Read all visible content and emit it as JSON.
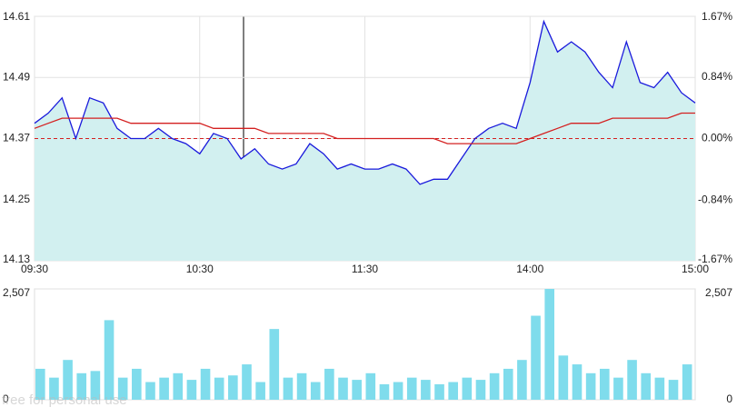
{
  "chart_data": [
    {
      "type": "line",
      "x": [
        0,
        5,
        10,
        15,
        20,
        25,
        30,
        35,
        40,
        45,
        50,
        55,
        60,
        65,
        70,
        75,
        80,
        85,
        90,
        95,
        100,
        105,
        110,
        115,
        120,
        125,
        130,
        135,
        140,
        145,
        150,
        155,
        160,
        165,
        170,
        175,
        180,
        185,
        190,
        195,
        200,
        205,
        210,
        215,
        220,
        225,
        230,
        235,
        240
      ],
      "xlim": [
        0,
        240
      ],
      "xticks": [
        {
          "value": 0,
          "label": "09:30"
        },
        {
          "value": 60,
          "label": "10:30"
        },
        {
          "value": 120,
          "label": "11:30"
        },
        {
          "value": 180,
          "label": "14:00"
        },
        {
          "value": 240,
          "label": "15:00"
        }
      ],
      "ylim": [
        14.13,
        14.61
      ],
      "yticks": [
        14.13,
        14.25,
        14.37,
        14.49,
        14.61
      ],
      "y2lim": [
        -1.67,
        1.67
      ],
      "y2ticks": [
        {
          "value": -1.67,
          "label": "-1.67%"
        },
        {
          "value": -0.84,
          "label": "-0.84%"
        },
        {
          "value": 0,
          "label": "0.00%"
        },
        {
          "value": 0.84,
          "label": "0.84%"
        },
        {
          "value": 1.67,
          "label": "1.67%"
        }
      ],
      "reference_line": 14.37,
      "grid": true,
      "series": [
        {
          "color": "#1a1adc",
          "fill": "#d2f0f0",
          "values": [
            14.4,
            14.42,
            14.45,
            14.37,
            14.45,
            14.44,
            14.39,
            14.37,
            14.37,
            14.39,
            14.37,
            14.36,
            14.34,
            14.38,
            14.37,
            14.33,
            14.35,
            14.32,
            14.31,
            14.32,
            14.36,
            14.34,
            14.31,
            14.32,
            14.31,
            14.31,
            14.32,
            14.31,
            14.28,
            14.29,
            14.29,
            14.33,
            14.37,
            14.39,
            14.4,
            14.39,
            14.48,
            14.6,
            14.54,
            14.56,
            14.54,
            14.5,
            14.47,
            14.56,
            14.48,
            14.47,
            14.5,
            14.46,
            14.44
          ]
        },
        {
          "color": "#d42020",
          "values": [
            14.39,
            14.4,
            14.41,
            14.41,
            14.41,
            14.41,
            14.41,
            14.4,
            14.4,
            14.4,
            14.4,
            14.4,
            14.4,
            14.39,
            14.39,
            14.39,
            14.39,
            14.38,
            14.38,
            14.38,
            14.38,
            14.38,
            14.37,
            14.37,
            14.37,
            14.37,
            14.37,
            14.37,
            14.37,
            14.37,
            14.36,
            14.36,
            14.36,
            14.36,
            14.36,
            14.36,
            14.37,
            14.38,
            14.39,
            14.4,
            14.4,
            14.4,
            14.41,
            14.41,
            14.41,
            14.41,
            14.41,
            14.42,
            14.42
          ]
        }
      ]
    },
    {
      "type": "bar",
      "x": [
        0,
        5,
        10,
        15,
        20,
        25,
        30,
        35,
        40,
        45,
        50,
        55,
        60,
        65,
        70,
        75,
        80,
        85,
        90,
        95,
        100,
        105,
        110,
        115,
        120,
        125,
        130,
        135,
        140,
        145,
        150,
        155,
        160,
        165,
        170,
        175,
        180,
        185,
        190,
        195,
        200,
        205,
        210,
        215,
        220,
        225,
        230,
        235
      ],
      "xlim": [
        0,
        240
      ],
      "ylim": [
        0,
        2507
      ],
      "yticks": [
        0,
        {
          "value": 2507,
          "label": "2,507"
        }
      ],
      "color": "#7fdcec",
      "values": [
        700,
        500,
        900,
        600,
        650,
        1800,
        500,
        700,
        400,
        500,
        600,
        450,
        700,
        500,
        550,
        800,
        400,
        1600,
        500,
        600,
        400,
        700,
        500,
        450,
        600,
        350,
        400,
        500,
        450,
        350,
        400,
        500,
        450,
        600,
        700,
        900,
        1900,
        2507,
        1000,
        800,
        600,
        700,
        500,
        900,
        600,
        500,
        450,
        800
      ]
    }
  ],
  "watermark": "free for personal use"
}
